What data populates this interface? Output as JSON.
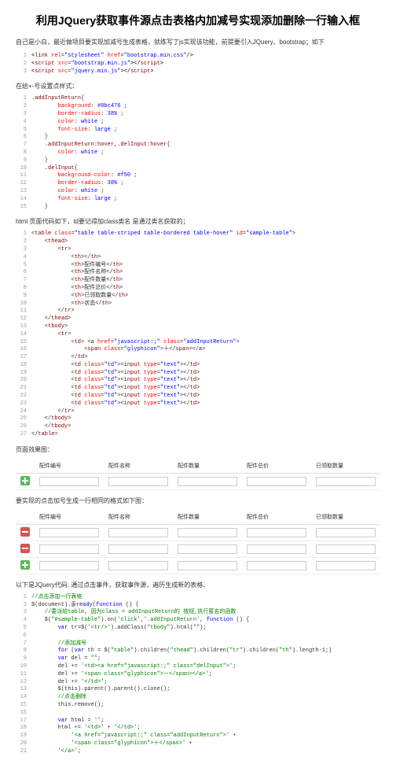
{
  "title": "利用JQuery获取事件源点击表格内加减号实现添加删除一行输入框",
  "intro": "自己是小白，最近做项目要实现加减号生成表格，就练写了js实现该功能，前提要引入JQuery、bootstrap；如下",
  "code_links": {
    "l1": "<link rel=\"stylesheet\" href=\"bootstrap.min.css\"/>",
    "l2": "<script src=\"bootstrap.min.js\"></script>",
    "l3": "<script src=\"jquery.min.js\"></script>"
  },
  "section_css_title": "在给+-号设置点样式：",
  "css_code": {
    "selectors": [
      ".addInputReturn{",
      "    background: #0bc476 ;",
      "    border-radius: 38% ;",
      "    color: white ;",
      "    font-size: large ;",
      "}",
      ".addInputReturn:hover,.delInput:hover{",
      "    color: white ;",
      "}",
      ".delInput{",
      "    background-color: #f50 ;",
      "    border-radius: 38% ;",
      "    color: white ;",
      "    font-size: large ;",
      "}"
    ]
  },
  "section_html_title": "html 页面代码如下，td要记得加class类名  是通过类名获取的；",
  "html_code": {
    "lines": [
      "<table class=\"table table-striped table-bordered table-hover\" id=\"sample-table\">",
      "    <thead>",
      "        <tr>",
      "            <th></th>",
      "            <th>配件编号</th>",
      "            <th>配件名称</th>",
      "            <th>配件数量</th>",
      "            <th>配件总价</th>",
      "            <th>已领取数量</th>",
      "            <th>状态</th>",
      "        </tr>",
      "    </thead>",
      "    <tbody>",
      "        <tr>",
      "            <td> <a href=\"javascript:;\" class=\"addInputReturn\">",
      "                <span class=\"glyphicon\">＋</span></a>",
      "            </td>",
      "            <td class=\"td\"><input type=\"text\"></td>",
      "            <td class=\"td\"><input type=\"text\"></td>",
      "            <td class=\"td\"><input type=\"text\"></td>",
      "            <td class=\"td\"><input type=\"text\"></td>",
      "            <td class=\"td\"><input type=\"text\"></td>",
      "            <td class=\"td\"><input type=\"text\"></td>",
      "        </tr>",
      "    </tbody>",
      "</table>"
    ]
  },
  "section_preview_title": "页面效果图：",
  "table_headers": [
    "配件编号",
    "配件名称",
    "配件数量",
    "配件总价",
    "已领取数量"
  ],
  "section_target_title": "要实现的点击加号生成一行相同的格式如下图：",
  "section_jquery_title": "以下是JQuery代码: 通过点击事件，获取事件源，遍历生成新的表格、",
  "jquery_code": {
    "lines": [
      "//点击添加一行表格",
      "$(document).ready(function () {",
      "    //委派给table, 因为class = addInputReturn的 按钮,执行匿名的函数",
      "    $(\"#sample-table\").on('click','.addInputReturn', function () {",
      "        var tr=$('<tr/>').addClass(\"tbody\").html(\"\");",
      "",
      "        //添加减号",
      "        for (var th = $(\"table\").children(\"thead\").children(\"tr\").children(\"th\").length-1;)",
      "        var del = \"\";",
      "        del += '<td><a href=\"javascript:;\" class=\"delInput\">';",
      "        del += '<span class=\"glyphicon\">－</span></a>';",
      "        del += '</td>';",
      "        $(this).parent().parent().clone();",
      "        //点击删除",
      "        this.remove();",
      "",
      "        var html = '';",
      "        html += '<td>' + '</td>';",
      "            '<a href=\"javascript:;\" class=\"addInputReturn\">' +",
      "            '<span class=\"glyphicon\">＋</span>' +",
      "        '</a>';"
    ]
  }
}
